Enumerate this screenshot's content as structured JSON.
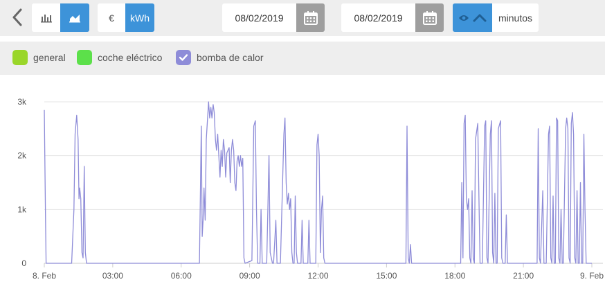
{
  "toolbar": {
    "bar_chart_icon": "bar-chart-icon",
    "area_chart_icon": "area-chart-icon",
    "currency_label": "€",
    "energy_label": "kWh",
    "date_from": "08/02/2019",
    "date_to": "08/02/2019",
    "units_label": "minutos"
  },
  "colors": {
    "accent": "#3d93d9",
    "general": "#9ad62a",
    "car": "#5ce04a",
    "heat_pump": "#8e8cd8"
  },
  "legend": {
    "general": "general",
    "car": "coche eléctrico",
    "heat_pump": "bomba de calor"
  },
  "chart_data": {
    "type": "line",
    "y_ticks": [
      "0",
      "1k",
      "2k",
      "3k"
    ],
    "ylim": [
      0,
      3000
    ],
    "x_tick_labels": [
      "8. Feb",
      "03:00",
      "06:00",
      "09:00",
      "12:00",
      "15:00",
      "18:00",
      "21:00",
      "9. Feb"
    ],
    "x_tick_hours": [
      0,
      3,
      6,
      9,
      12,
      15,
      18,
      21,
      24
    ],
    "xlim_hours": [
      0,
      24
    ],
    "grid": true,
    "series": [
      {
        "name": "bomba de calor",
        "points": [
          [
            0.0,
            2850
          ],
          [
            0.05,
            1000
          ],
          [
            0.08,
            0
          ],
          [
            1.2,
            0
          ],
          [
            1.3,
            1000
          ],
          [
            1.35,
            2400
          ],
          [
            1.42,
            2750
          ],
          [
            1.48,
            2300
          ],
          [
            1.52,
            1200
          ],
          [
            1.55,
            1400
          ],
          [
            1.6,
            1200
          ],
          [
            1.65,
            200
          ],
          [
            1.7,
            100
          ],
          [
            1.75,
            1800
          ],
          [
            1.8,
            200
          ],
          [
            1.85,
            0
          ],
          [
            6.8,
            0
          ],
          [
            6.88,
            2550
          ],
          [
            6.92,
            500
          ],
          [
            6.96,
            800
          ],
          [
            7.0,
            1400
          ],
          [
            7.05,
            800
          ],
          [
            7.1,
            2300
          ],
          [
            7.2,
            3000
          ],
          [
            7.25,
            2700
          ],
          [
            7.3,
            2900
          ],
          [
            7.35,
            2700
          ],
          [
            7.4,
            2950
          ],
          [
            7.45,
            2800
          ],
          [
            7.5,
            2300
          ],
          [
            7.55,
            2100
          ],
          [
            7.6,
            2400
          ],
          [
            7.65,
            2000
          ],
          [
            7.7,
            1600
          ],
          [
            7.75,
            2100
          ],
          [
            7.8,
            1800
          ],
          [
            7.85,
            2300
          ],
          [
            7.9,
            2100
          ],
          [
            7.95,
            1600
          ],
          [
            8.0,
            2050
          ],
          [
            8.1,
            2150
          ],
          [
            8.15,
            1500
          ],
          [
            8.2,
            2100
          ],
          [
            8.25,
            2300
          ],
          [
            8.3,
            2100
          ],
          [
            8.35,
            1500
          ],
          [
            8.4,
            1350
          ],
          [
            8.45,
            1900
          ],
          [
            8.5,
            2000
          ],
          [
            8.55,
            1800
          ],
          [
            8.6,
            2000
          ],
          [
            8.65,
            1800
          ],
          [
            8.7,
            1950
          ],
          [
            8.75,
            100
          ],
          [
            8.8,
            0
          ],
          [
            9.1,
            50
          ],
          [
            9.18,
            2550
          ],
          [
            9.25,
            2650
          ],
          [
            9.3,
            1000
          ],
          [
            9.35,
            0
          ],
          [
            9.45,
            0
          ],
          [
            9.5,
            1000
          ],
          [
            9.55,
            0
          ],
          [
            9.75,
            0
          ],
          [
            9.85,
            2000
          ],
          [
            9.9,
            200
          ],
          [
            10.0,
            0
          ],
          [
            10.05,
            0
          ],
          [
            10.15,
            800
          ],
          [
            10.2,
            0
          ],
          [
            10.35,
            0
          ],
          [
            10.5,
            2400
          ],
          [
            10.55,
            2700
          ],
          [
            10.6,
            1500
          ],
          [
            10.65,
            1100
          ],
          [
            10.7,
            1300
          ],
          [
            10.75,
            1000
          ],
          [
            10.8,
            1200
          ],
          [
            10.85,
            200
          ],
          [
            10.9,
            0
          ],
          [
            10.95,
            0
          ],
          [
            11.0,
            1250
          ],
          [
            11.05,
            200
          ],
          [
            11.1,
            0
          ],
          [
            11.25,
            0
          ],
          [
            11.3,
            800
          ],
          [
            11.35,
            0
          ],
          [
            11.55,
            0
          ],
          [
            11.6,
            800
          ],
          [
            11.65,
            0
          ],
          [
            11.9,
            0
          ],
          [
            11.95,
            2200
          ],
          [
            12.0,
            2400
          ],
          [
            12.05,
            2000
          ],
          [
            12.1,
            200
          ],
          [
            12.15,
            1000
          ],
          [
            12.2,
            1250
          ],
          [
            12.25,
            100
          ],
          [
            12.3,
            0
          ],
          [
            15.85,
            0
          ],
          [
            15.9,
            2550
          ],
          [
            15.95,
            100
          ],
          [
            16.0,
            0
          ],
          [
            16.05,
            350
          ],
          [
            16.1,
            0
          ],
          [
            18.25,
            0
          ],
          [
            18.3,
            1500
          ],
          [
            18.35,
            100
          ],
          [
            18.4,
            2600
          ],
          [
            18.45,
            2750
          ],
          [
            18.5,
            1200
          ],
          [
            18.55,
            1000
          ],
          [
            18.6,
            1200
          ],
          [
            18.65,
            100
          ],
          [
            18.7,
            0
          ],
          [
            18.75,
            1350
          ],
          [
            18.8,
            100
          ],
          [
            18.85,
            0
          ],
          [
            18.9,
            2300
          ],
          [
            19.0,
            2600
          ],
          [
            19.05,
            1200
          ],
          [
            19.1,
            0
          ],
          [
            19.2,
            0
          ],
          [
            19.3,
            2550
          ],
          [
            19.35,
            2650
          ],
          [
            19.4,
            100
          ],
          [
            19.45,
            0
          ],
          [
            19.55,
            2400
          ],
          [
            19.6,
            2650
          ],
          [
            19.65,
            200
          ],
          [
            19.7,
            0
          ],
          [
            19.75,
            1300
          ],
          [
            19.8,
            0
          ],
          [
            19.85,
            0
          ],
          [
            19.9,
            2500
          ],
          [
            20.0,
            2650
          ],
          [
            20.05,
            100
          ],
          [
            20.1,
            0
          ],
          [
            20.2,
            0
          ],
          [
            20.25,
            900
          ],
          [
            20.3,
            0
          ],
          [
            21.6,
            0
          ],
          [
            21.65,
            2500
          ],
          [
            21.7,
            100
          ],
          [
            21.75,
            0
          ],
          [
            21.85,
            1350
          ],
          [
            21.9,
            0
          ],
          [
            22.0,
            0
          ],
          [
            22.1,
            2400
          ],
          [
            22.15,
            2550
          ],
          [
            22.2,
            100
          ],
          [
            22.25,
            0
          ],
          [
            22.3,
            1250
          ],
          [
            22.35,
            0
          ],
          [
            22.4,
            0
          ],
          [
            22.45,
            2700
          ],
          [
            22.5,
            2650
          ],
          [
            22.55,
            100
          ],
          [
            22.6,
            0
          ],
          [
            22.65,
            1000
          ],
          [
            22.7,
            0
          ],
          [
            22.75,
            0
          ],
          [
            22.85,
            2500
          ],
          [
            22.9,
            2700
          ],
          [
            22.95,
            2500
          ],
          [
            23.0,
            100
          ],
          [
            23.05,
            0
          ],
          [
            23.1,
            2600
          ],
          [
            23.15,
            2800
          ],
          [
            23.2,
            2400
          ],
          [
            23.25,
            100
          ],
          [
            23.3,
            0
          ],
          [
            23.35,
            1350
          ],
          [
            23.4,
            0
          ],
          [
            23.45,
            0
          ],
          [
            23.5,
            1500
          ],
          [
            23.55,
            0
          ],
          [
            23.6,
            0
          ],
          [
            23.65,
            2400
          ],
          [
            23.7,
            1000
          ],
          [
            23.75,
            0
          ],
          [
            24.0,
            0
          ]
        ]
      }
    ]
  }
}
